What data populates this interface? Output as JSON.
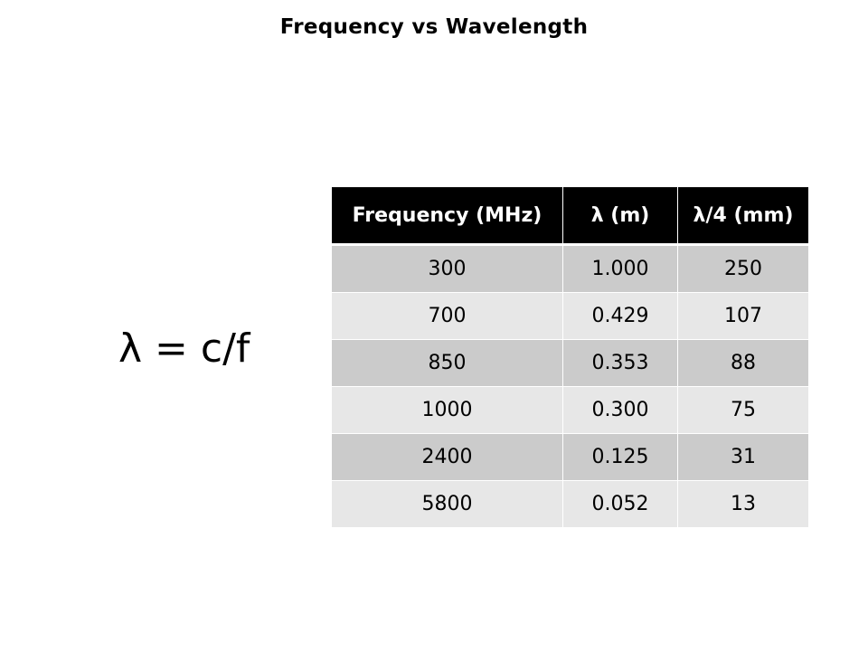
{
  "slide": {
    "title": "Frequency vs Wavelength",
    "formula": "λ = c/f"
  },
  "table": {
    "headers": [
      "Frequency (MHz)",
      "λ (m)",
      "λ/4 (mm)"
    ],
    "rows": [
      [
        "300",
        "1.000",
        "250"
      ],
      [
        "700",
        "0.429",
        "107"
      ],
      [
        "850",
        "0.353",
        "88"
      ],
      [
        "1000",
        "0.300",
        "75"
      ],
      [
        "2400",
        "0.125",
        "31"
      ],
      [
        "5800",
        "0.052",
        "13"
      ]
    ],
    "colors": {
      "header_bg": "#000000",
      "header_text": "#ffffff",
      "row_dark": "#cbcbcb",
      "row_light": "#e7e7e7"
    }
  }
}
